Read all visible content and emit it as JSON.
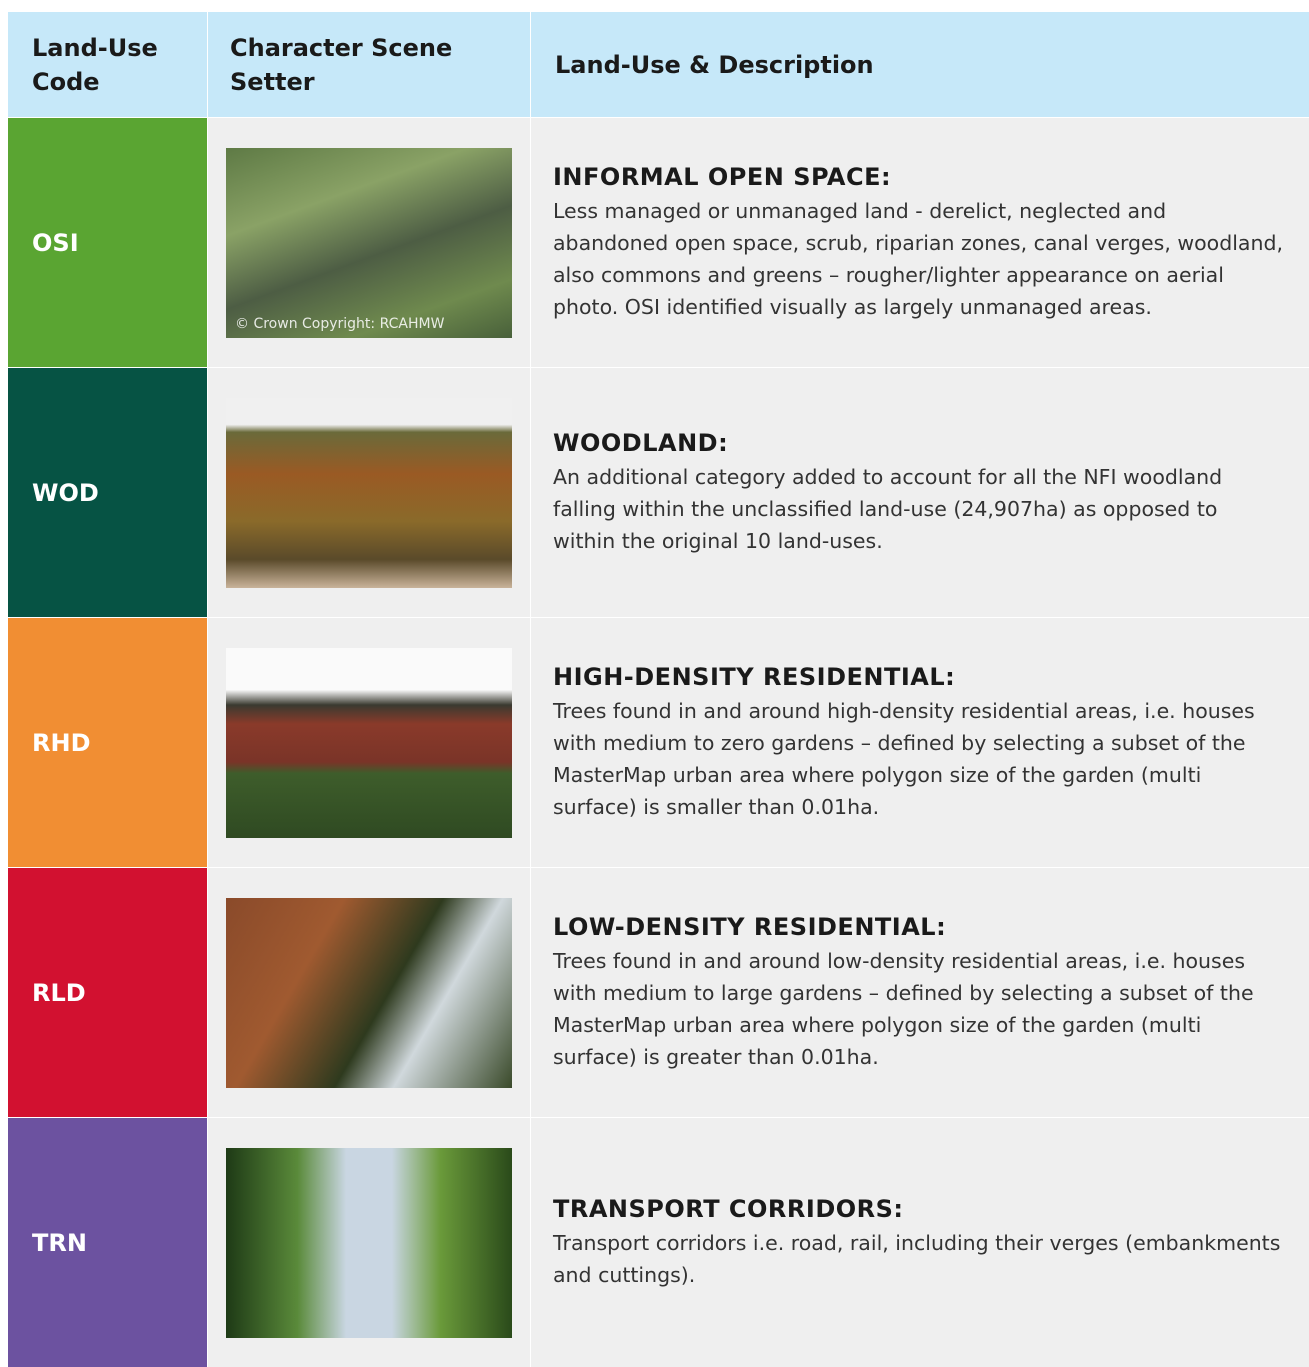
{
  "table": {
    "headers": [
      "Land-Use Code",
      "Character Scene Setter",
      "Land-Use & Description"
    ],
    "rows": [
      {
        "code": "OSI",
        "color": "#5aa532",
        "image_caption": "© Crown Copyright: RCAHMW",
        "title": "INFORMAL OPEN SPACE:",
        "description": "Less managed or unmanaged land - derelict, neglected and abandoned open space, scrub, riparian zones, canal verges, woodland, also commons and greens – rougher/lighter appearance on aerial photo. OSI identified visually as largely unmanaged areas."
      },
      {
        "code": "WOD",
        "color": "#065344",
        "title": "WOODLAND:",
        "description": "An additional category added to account for all the NFI woodland falling within the unclassified land-use (24,907ha) as opposed to within the original 10 land-uses."
      },
      {
        "code": "RHD",
        "color": "#f18e33",
        "title": "HIGH-DENSITY RESIDENTIAL:",
        "description": "Trees found in and around high-density residential areas, i.e. houses with medium to zero gardens – defined by selecting a subset of the MasterMap urban area where polygon size of the garden (multi surface) is smaller than 0.01ha."
      },
      {
        "code": "RLD",
        "color": "#d21130",
        "title": "LOW-DENSITY RESIDENTIAL:",
        "description": "Trees found in and around low-density residential areas, i.e. houses with medium to large gardens – defined by selecting a subset of the MasterMap urban area where polygon size of the garden (multi surface) is greater than 0.01ha."
      },
      {
        "code": "TRN",
        "color": "#6c52a0",
        "title": "TRANSPORT CORRIDORS:",
        "description": "Transport corridors i.e. road, rail, including their verges (embankments and cuttings)."
      }
    ]
  }
}
